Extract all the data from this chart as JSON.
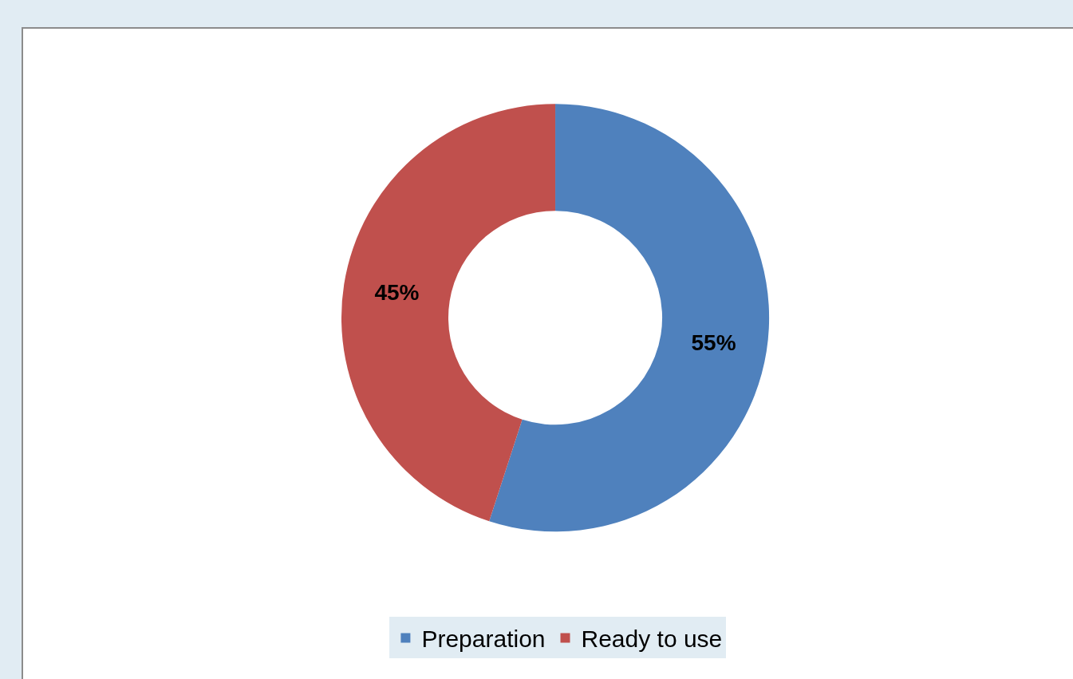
{
  "chart_data": {
    "type": "donut",
    "categories": [
      "Preparation",
      "Ready to use"
    ],
    "values": [
      55,
      45
    ],
    "colors": [
      "#4f81bd",
      "#c0504d"
    ],
    "value_labels": [
      "55%",
      "45%"
    ],
    "legend": "bottom"
  }
}
